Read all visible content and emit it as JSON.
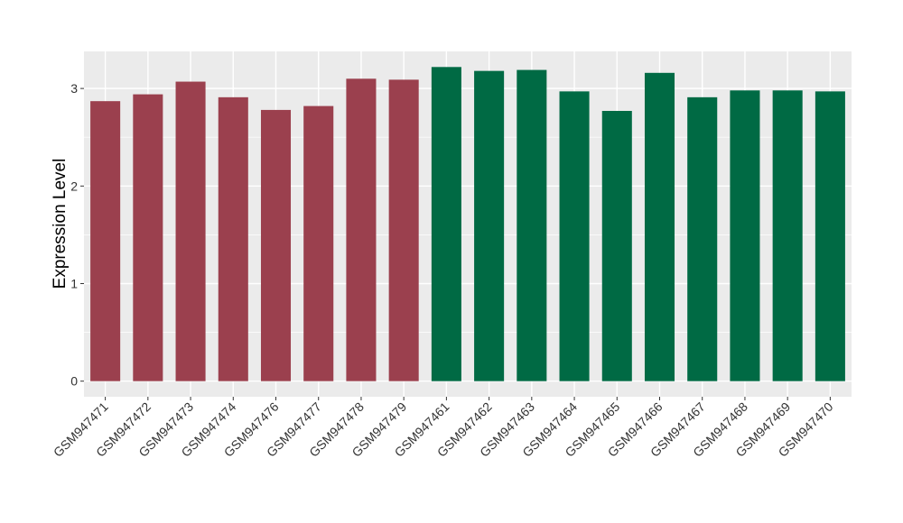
{
  "chart_data": {
    "type": "bar",
    "title": "",
    "xlabel": "",
    "ylabel": "Expression Level",
    "categories": [
      "GSM947471",
      "GSM947472",
      "GSM947473",
      "GSM947474",
      "GSM947476",
      "GSM947477",
      "GSM947478",
      "GSM947479",
      "GSM947461",
      "GSM947462",
      "GSM947463",
      "GSM947464",
      "GSM947465",
      "GSM947466",
      "GSM947467",
      "GSM947468",
      "GSM947469",
      "GSM947470"
    ],
    "values": [
      2.87,
      2.94,
      3.07,
      2.91,
      2.78,
      2.82,
      3.1,
      3.09,
      3.22,
      3.18,
      3.19,
      2.97,
      2.77,
      3.16,
      2.91,
      2.98,
      2.98,
      2.97
    ],
    "group_sizes": [
      8,
      10
    ],
    "group_colors": [
      "#9B404E",
      "#006A44"
    ],
    "yticks": [
      0,
      1,
      2,
      3
    ],
    "ylim": [
      -0.16,
      3.38
    ],
    "grid": true,
    "panel_background": "#EBEBEB",
    "legend": "none"
  }
}
